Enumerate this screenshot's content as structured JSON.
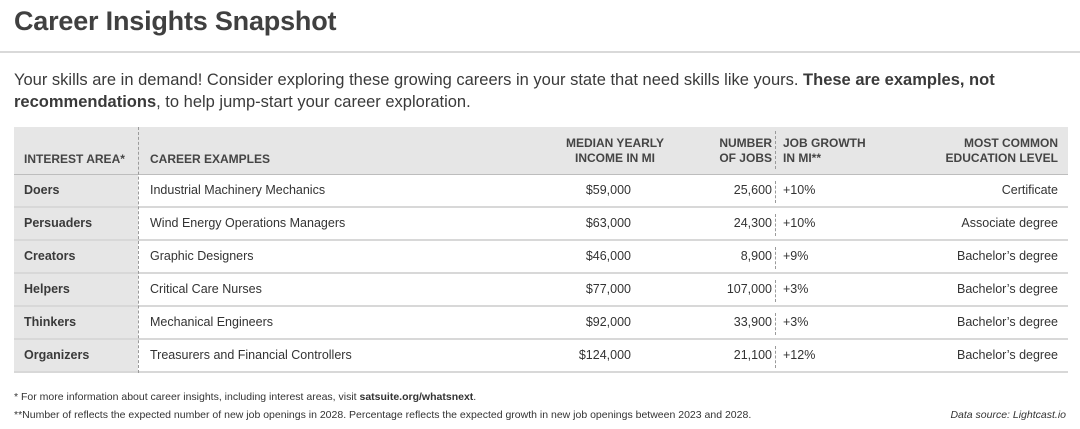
{
  "title": "Career Insights Snapshot",
  "intro": {
    "text": "Your skills are in demand! Consider exploring these growing careers in your state that need skills like yours. ",
    "bold": "These are examples, not recommendations",
    "tail": ", to help jump-start your career exploration."
  },
  "table": {
    "headers": {
      "area": "INTEREST AREA*",
      "career": "CAREER EXAMPLES",
      "income_1": "MEDIAN YEARLY",
      "income_2": "INCOME IN MI",
      "jobs_1": "NUMBER",
      "jobs_2": "OF JOBS",
      "growth_1": "JOB GROWTH",
      "growth_2": "IN MI**",
      "edu_1": "MOST COMMON",
      "edu_2": "EDUCATION LEVEL"
    },
    "rows": [
      {
        "area": "Doers",
        "career": "Industrial Machinery Mechanics",
        "income": "$59,000",
        "jobs": "25,600",
        "growth": "+10%",
        "education": "Certificate"
      },
      {
        "area": "Persuaders",
        "career": "Wind Energy Operations Managers",
        "income": "$63,000",
        "jobs": "24,300",
        "growth": "+10%",
        "education": "Associate degree"
      },
      {
        "area": "Creators",
        "career": "Graphic Designers",
        "income": "$46,000",
        "jobs": "8,900",
        "growth": "+9%",
        "education": "Bachelor’s degree"
      },
      {
        "area": "Helpers",
        "career": "Critical Care Nurses",
        "income": "$77,000",
        "jobs": "107,000",
        "growth": "+3%",
        "education": "Bachelor’s degree"
      },
      {
        "area": "Thinkers",
        "career": "Mechanical Engineers",
        "income": "$92,000",
        "jobs": "33,900",
        "growth": "+3%",
        "education": "Bachelor’s degree"
      },
      {
        "area": "Organizers",
        "career": "Treasurers and Financial Controllers",
        "income": "$124,000",
        "jobs": "21,100",
        "growth": "+12%",
        "education": "Bachelor’s degree"
      }
    ]
  },
  "footnotes": {
    "note1_text": "* For more information about career insights, including interest areas, visit ",
    "note1_link": "satsuite.org/whatsnext",
    "note1_end": ".",
    "note2": "**Number of reflects the expected number of new job openings in 2028. Percentage reflects the expected growth in new job openings between 2023 and 2028.",
    "source": "Data source: Lightcast.io"
  }
}
